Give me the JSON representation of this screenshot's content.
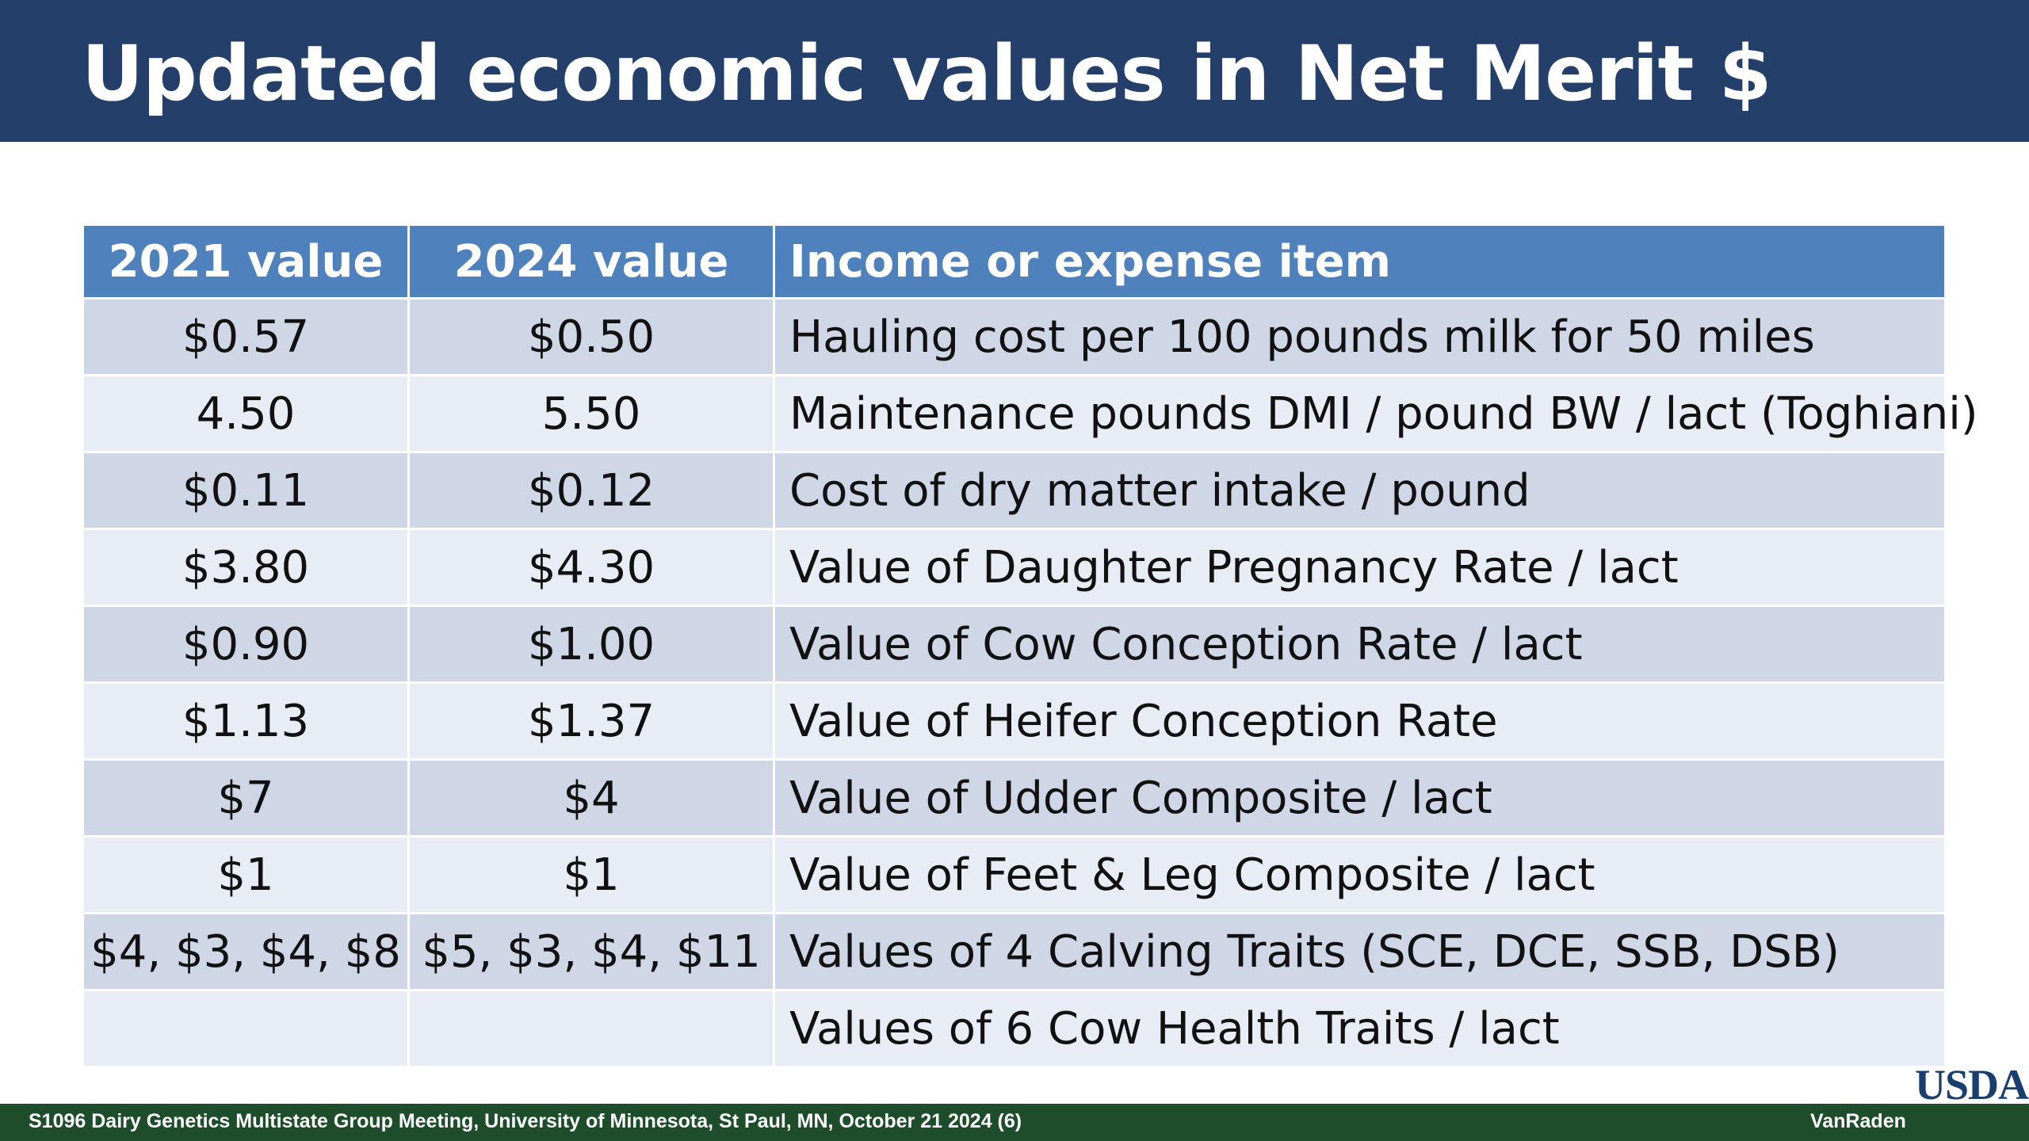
{
  "slide": {
    "title": "Updated economic values in Net Merit $"
  },
  "table": {
    "headers": [
      "2021 value",
      "2024 value",
      "Income or expense item"
    ],
    "rows": [
      [
        "$0.57",
        "$0.50",
        "Hauling cost per 100 pounds milk for 50 miles"
      ],
      [
        "4.50",
        "5.50",
        "Maintenance pounds DMI / pound BW / lact (Toghiani)"
      ],
      [
        "$0.11",
        "$0.12",
        "Cost of dry matter intake / pound"
      ],
      [
        "$3.80",
        "$4.30",
        "Value of Daughter Pregnancy Rate / lact"
      ],
      [
        "$0.90",
        "$1.00",
        "Value of Cow Conception Rate / lact"
      ],
      [
        "$1.13",
        "$1.37",
        "Value of Heifer Conception Rate"
      ],
      [
        "$7",
        "$4",
        "Value of Udder Composite / lact"
      ],
      [
        "$1",
        "$1",
        "Value of Feet & Leg Composite / lact"
      ],
      [
        "$4, $3, $4, $8",
        "$5, $3, $4, $11",
        "Values of 4 Calving Traits (SCE, DCE, SSB, DSB)"
      ],
      [
        "",
        "",
        "Values of 6 Cow Health Traits / lact"
      ]
    ]
  },
  "footer": {
    "meeting": "S1096 Dairy Genetics Multistate Group Meeting, University of Minnesota, St Paul, MN, October 21 2024 (6)",
    "author": "VanRaden",
    "logo_text": "USDA"
  },
  "colors": {
    "title_bar": "#243f6a",
    "header_row": "#4f81bd",
    "row_odd": "#cfd6e6",
    "row_even": "#e8ecf4",
    "footer_bar": "#1e4d2b"
  }
}
